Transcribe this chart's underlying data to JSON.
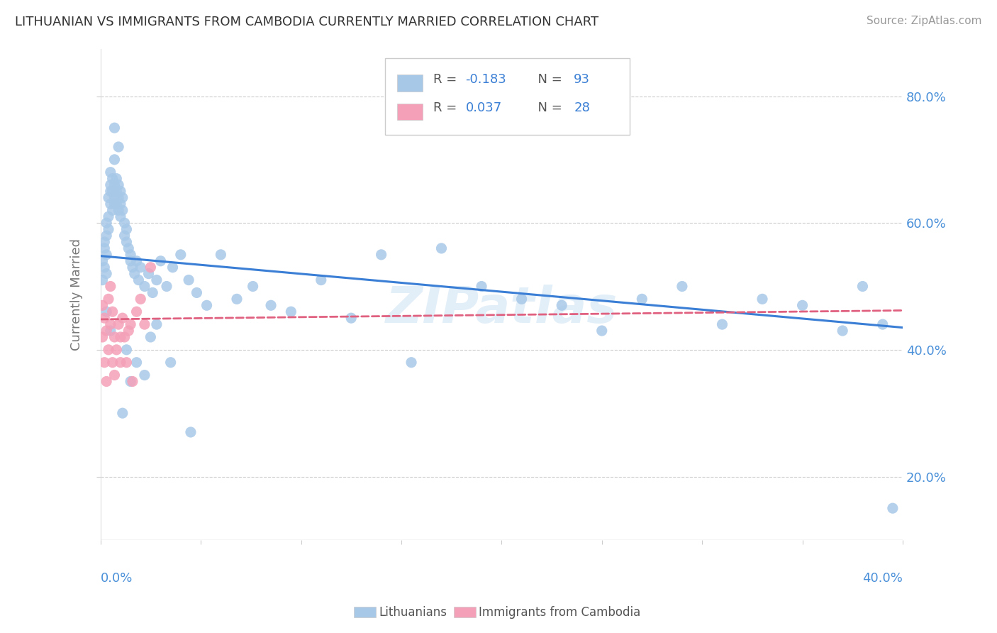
{
  "title": "LITHUANIAN VS IMMIGRANTS FROM CAMBODIA CURRENTLY MARRIED CORRELATION CHART",
  "source_text": "Source: ZipAtlas.com",
  "ylabel": "Currently Married",
  "xmin": 0.0,
  "xmax": 0.4,
  "ymin": 0.1,
  "ymax": 0.875,
  "yticks": [
    0.2,
    0.4,
    0.6,
    0.8
  ],
  "ytick_labels": [
    "20.0%",
    "40.0%",
    "60.0%",
    "80.0%"
  ],
  "watermark": "ZIPatlas",
  "blue_color": "#a8c8e8",
  "pink_color": "#f4a0b8",
  "blue_line_color": "#3a7fd5",
  "pink_line_color": "#e06080",
  "lith_x": [
    0.001,
    0.001,
    0.002,
    0.002,
    0.002,
    0.003,
    0.003,
    0.003,
    0.003,
    0.004,
    0.004,
    0.004,
    0.005,
    0.005,
    0.005,
    0.005,
    0.006,
    0.006,
    0.006,
    0.007,
    0.007,
    0.007,
    0.007,
    0.008,
    0.008,
    0.008,
    0.009,
    0.009,
    0.009,
    0.01,
    0.01,
    0.01,
    0.011,
    0.011,
    0.012,
    0.012,
    0.013,
    0.013,
    0.014,
    0.015,
    0.015,
    0.016,
    0.017,
    0.018,
    0.019,
    0.02,
    0.022,
    0.024,
    0.026,
    0.028,
    0.03,
    0.033,
    0.036,
    0.04,
    0.044,
    0.048,
    0.053,
    0.06,
    0.068,
    0.076,
    0.085,
    0.095,
    0.11,
    0.125,
    0.14,
    0.155,
    0.17,
    0.19,
    0.21,
    0.23,
    0.25,
    0.27,
    0.29,
    0.31,
    0.33,
    0.35,
    0.37,
    0.38,
    0.39,
    0.395,
    0.003,
    0.005,
    0.007,
    0.009,
    0.011,
    0.013,
    0.015,
    0.018,
    0.022,
    0.025,
    0.028,
    0.035,
    0.045
  ],
  "lith_y": [
    0.54,
    0.51,
    0.56,
    0.53,
    0.57,
    0.55,
    0.58,
    0.6,
    0.52,
    0.61,
    0.59,
    0.64,
    0.63,
    0.66,
    0.65,
    0.68,
    0.62,
    0.65,
    0.67,
    0.63,
    0.66,
    0.64,
    0.7,
    0.63,
    0.65,
    0.67,
    0.62,
    0.64,
    0.66,
    0.61,
    0.63,
    0.65,
    0.64,
    0.62,
    0.6,
    0.58,
    0.57,
    0.59,
    0.56,
    0.54,
    0.55,
    0.53,
    0.52,
    0.54,
    0.51,
    0.53,
    0.5,
    0.52,
    0.49,
    0.51,
    0.54,
    0.5,
    0.53,
    0.55,
    0.51,
    0.49,
    0.47,
    0.55,
    0.48,
    0.5,
    0.47,
    0.46,
    0.51,
    0.45,
    0.55,
    0.38,
    0.56,
    0.5,
    0.48,
    0.47,
    0.43,
    0.48,
    0.5,
    0.44,
    0.48,
    0.47,
    0.43,
    0.5,
    0.44,
    0.15,
    0.46,
    0.43,
    0.75,
    0.72,
    0.3,
    0.4,
    0.35,
    0.38,
    0.36,
    0.42,
    0.44,
    0.38,
    0.27
  ],
  "camb_x": [
    0.001,
    0.001,
    0.002,
    0.002,
    0.003,
    0.003,
    0.004,
    0.004,
    0.005,
    0.005,
    0.006,
    0.006,
    0.007,
    0.007,
    0.008,
    0.009,
    0.01,
    0.01,
    0.011,
    0.012,
    0.013,
    0.014,
    0.015,
    0.016,
    0.018,
    0.02,
    0.022,
    0.025
  ],
  "camb_y": [
    0.42,
    0.47,
    0.38,
    0.45,
    0.35,
    0.43,
    0.4,
    0.48,
    0.44,
    0.5,
    0.46,
    0.38,
    0.42,
    0.36,
    0.4,
    0.44,
    0.42,
    0.38,
    0.45,
    0.42,
    0.38,
    0.43,
    0.44,
    0.35,
    0.46,
    0.48,
    0.44,
    0.53
  ],
  "blue_line_x": [
    0.0,
    0.4
  ],
  "blue_line_y": [
    0.548,
    0.435
  ],
  "pink_line_x": [
    0.0,
    0.4
  ],
  "pink_line_y": [
    0.448,
    0.462
  ]
}
